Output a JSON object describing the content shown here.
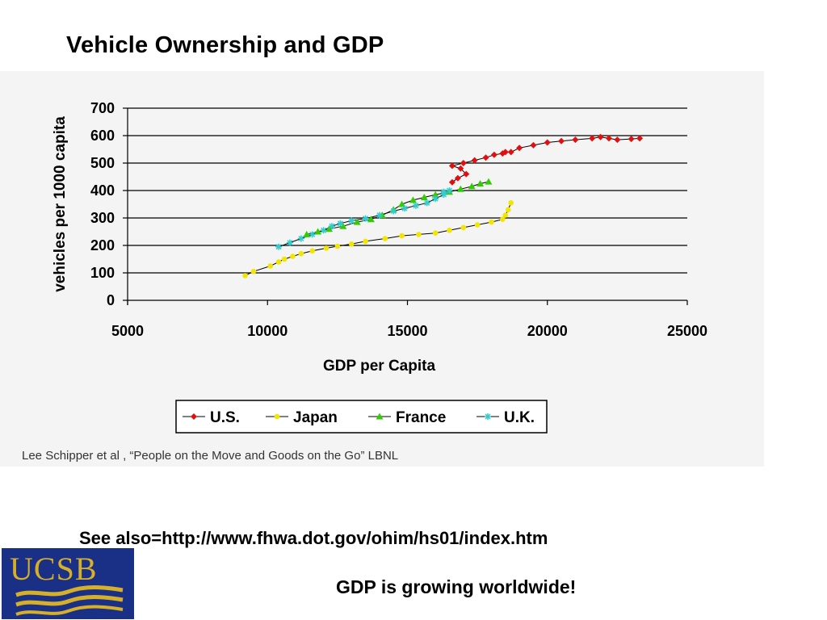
{
  "slide": {
    "title": "Vehicle Ownership and GDP",
    "citation": "Lee Schipper et al , “People on the Move and Goods on the Go” LBNL",
    "see_also": "See also=http://www.fhwa.dot.gov/ohim/hs01/index.htm",
    "tagline": "GDP is growing worldwide!",
    "logo_text": "UCSB"
  },
  "chart_data": {
    "type": "line",
    "xlabel": "GDP per Capita",
    "ylabel": "vehicles per 1000 capita",
    "xlim": [
      5000,
      25000
    ],
    "ylim": [
      0,
      700
    ],
    "xticks": [
      5000,
      10000,
      15000,
      20000,
      25000
    ],
    "yticks": [
      0,
      100,
      200,
      300,
      400,
      500,
      600,
      700
    ],
    "grid": "horizontal",
    "legend_position": "bottom",
    "series": [
      {
        "name": "U.S.",
        "color": "#e01010",
        "marker": "diamond",
        "points": [
          [
            16600,
            430
          ],
          [
            16800,
            445
          ],
          [
            17100,
            460
          ],
          [
            16900,
            480
          ],
          [
            16600,
            490
          ],
          [
            17000,
            500
          ],
          [
            17400,
            510
          ],
          [
            17800,
            520
          ],
          [
            18100,
            530
          ],
          [
            18400,
            535
          ],
          [
            18500,
            540
          ],
          [
            18700,
            540
          ],
          [
            19000,
            555
          ],
          [
            19500,
            565
          ],
          [
            20000,
            575
          ],
          [
            20500,
            580
          ],
          [
            21000,
            585
          ],
          [
            21600,
            590
          ],
          [
            21900,
            595
          ],
          [
            22200,
            590
          ],
          [
            22500,
            585
          ],
          [
            23000,
            588
          ],
          [
            23300,
            590
          ]
        ]
      },
      {
        "name": "Japan",
        "color": "#f2e600",
        "marker": "circle",
        "points": [
          [
            9200,
            90
          ],
          [
            9500,
            105
          ],
          [
            10100,
            125
          ],
          [
            10400,
            140
          ],
          [
            10600,
            150
          ],
          [
            10900,
            160
          ],
          [
            11200,
            170
          ],
          [
            11600,
            180
          ],
          [
            12100,
            190
          ],
          [
            12500,
            197
          ],
          [
            13000,
            205
          ],
          [
            13500,
            215
          ],
          [
            14200,
            225
          ],
          [
            14800,
            235
          ],
          [
            15400,
            240
          ],
          [
            16000,
            245
          ],
          [
            16500,
            255
          ],
          [
            17000,
            265
          ],
          [
            17500,
            275
          ],
          [
            18000,
            285
          ],
          [
            18400,
            295
          ],
          [
            18500,
            310
          ],
          [
            18600,
            330
          ],
          [
            18700,
            355
          ]
        ]
      },
      {
        "name": "France",
        "color": "#33cc00",
        "marker": "triangle",
        "points": [
          [
            11400,
            240
          ],
          [
            11800,
            250
          ],
          [
            12200,
            260
          ],
          [
            12700,
            270
          ],
          [
            13200,
            285
          ],
          [
            13700,
            295
          ],
          [
            14100,
            310
          ],
          [
            14500,
            330
          ],
          [
            14800,
            350
          ],
          [
            15200,
            365
          ],
          [
            15600,
            375
          ],
          [
            16000,
            385
          ],
          [
            16500,
            395
          ],
          [
            16900,
            405
          ],
          [
            17300,
            415
          ],
          [
            17600,
            425
          ],
          [
            17900,
            432
          ]
        ]
      },
      {
        "name": "U.K.",
        "color": "#33cccc",
        "marker": "star",
        "points": [
          [
            10400,
            195
          ],
          [
            10800,
            210
          ],
          [
            11200,
            225
          ],
          [
            11600,
            240
          ],
          [
            12000,
            255
          ],
          [
            12300,
            270
          ],
          [
            12600,
            280
          ],
          [
            13000,
            290
          ],
          [
            13500,
            298
          ],
          [
            14000,
            310
          ],
          [
            14500,
            325
          ],
          [
            14900,
            335
          ],
          [
            15300,
            345
          ],
          [
            15700,
            355
          ],
          [
            16000,
            370
          ],
          [
            16300,
            385
          ],
          [
            16500,
            400
          ],
          [
            16300,
            395
          ]
        ]
      }
    ]
  }
}
